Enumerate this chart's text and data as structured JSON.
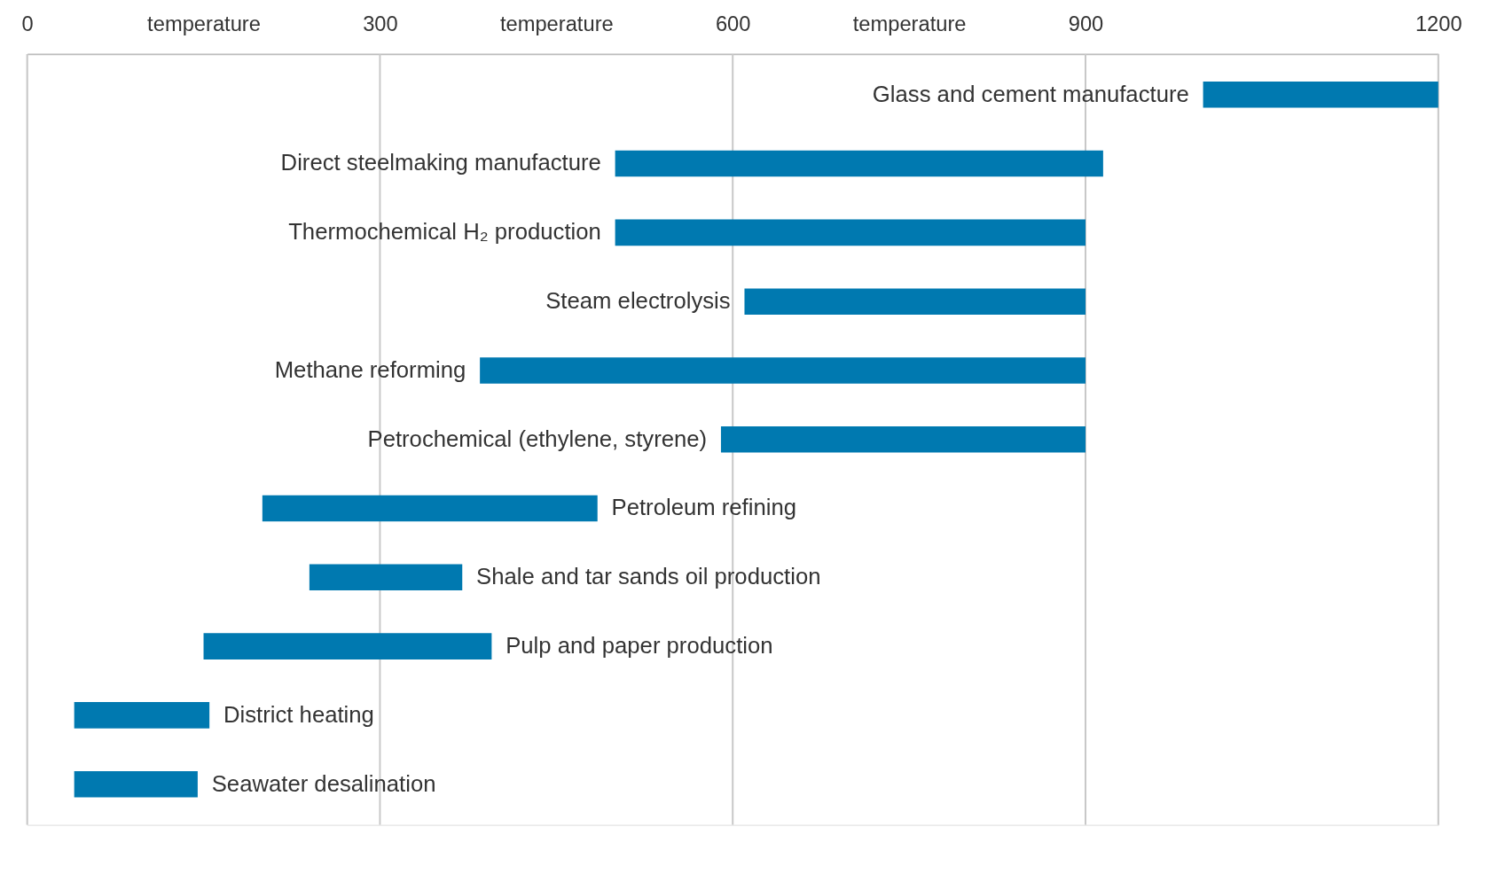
{
  "chart_data": {
    "type": "bar",
    "orientation": "horizontal",
    "categories": [
      "Glass and cement manufacture",
      "Direct steelmaking manufacture",
      "Thermochemical H₂ production",
      "Steam electrolysis",
      "Methane reforming",
      "Petrochemical (ethylene, styrene)",
      "Petroleum refining",
      "Shale and tar sands oil production",
      "Pulp and paper production",
      "District heating",
      "Seawater desalination"
    ],
    "base": [
      1000,
      500,
      500,
      610,
      385,
      590,
      200,
      240,
      150,
      40,
      40
    ],
    "values": [
      200,
      415,
      400,
      290,
      515,
      310,
      285,
      130,
      245,
      115,
      105
    ],
    "color": "#0079b0",
    "xlim": [
      0,
      1200
    ],
    "xticks": [
      0,
      {
        "value": 150,
        "label": "temperature"
      },
      300,
      {
        "value": 450,
        "label": "temperature"
      },
      600,
      {
        "value": 750,
        "label": "temperature"
      },
      900,
      1200
    ],
    "grid": "x"
  }
}
